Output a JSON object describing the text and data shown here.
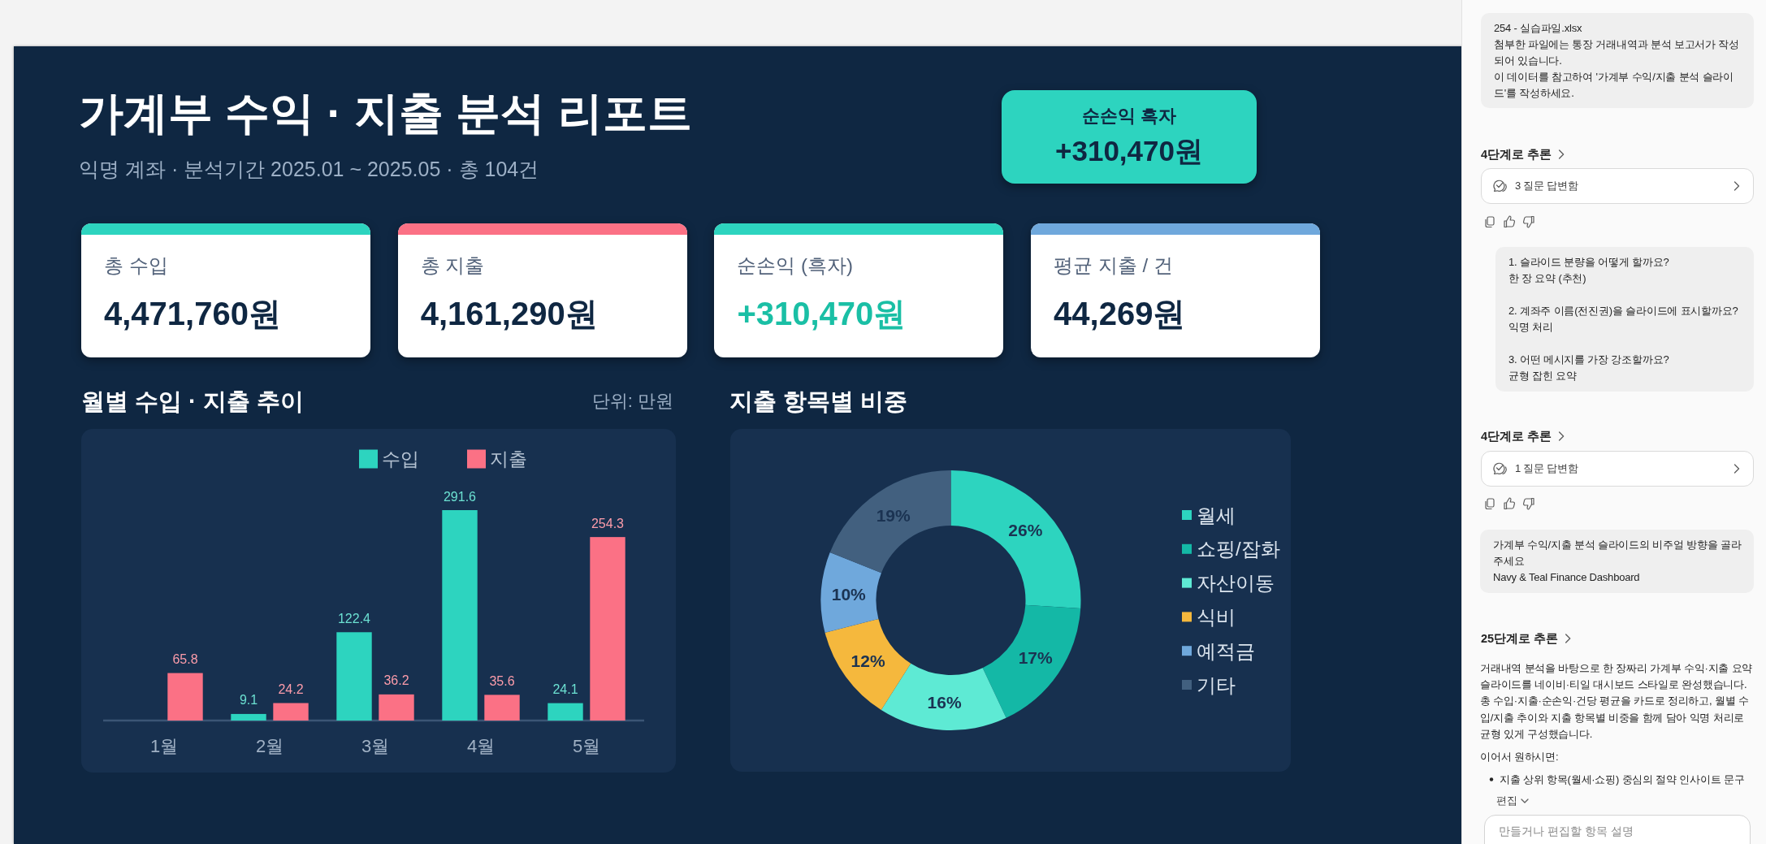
{
  "chart_data": [
    {
      "type": "other",
      "title": "가계부 수익 · 지출 분석 리포트",
      "subtitle": "익명 계좌 · 분석기간 2025.01 ~ 2025.05 · 총 104건",
      "annotations": [
        "순손익 흑자",
        "+310,470원",
        "총 수입",
        "4,471,760원",
        "총 지출",
        "4,161,290원",
        "순손익 (흑자)",
        "+310,470원",
        "평균 지출 / 건",
        "44,269원"
      ]
    },
    {
      "type": "bar",
      "title": "월별 수입 · 지출 추이",
      "annotations": [
        "단위: 만원"
      ],
      "categories": [
        "1월",
        "2월",
        "3월",
        "4월",
        "5월"
      ],
      "series": [
        {
          "name": "수입",
          "color": "#2dd4bf",
          "values": [
            null,
            9.1,
            122.4,
            291.6,
            24.1
          ]
        },
        {
          "name": "지출",
          "color": "#fb7185",
          "values": [
            65.8,
            24.2,
            36.2,
            35.6,
            254.3
          ]
        }
      ],
      "data_labels": true,
      "legend": "top"
    },
    {
      "type": "donut",
      "title": "지출 항목별 비중",
      "categories": [
        "월세",
        "쇼핑/잡화",
        "자산이동",
        "식비",
        "예적금",
        "기타"
      ],
      "values": [
        26,
        17,
        16,
        12,
        10,
        19
      ],
      "colors": [
        "#2dd4bf",
        "#14b8a6",
        "#5eead4",
        "#f5b83d",
        "#6fa8dc",
        "#42607f"
      ],
      "value_labels": [
        "26%",
        "17%",
        "16%",
        "12%",
        "10%",
        "19%"
      ],
      "legend": "right"
    },
    {
      "type": "other",
      "annotations": [
        "254 - 실습파일.xlsx",
        "첨부한 파일에는 통장 거래내역과 분석 보고서가 작성되어 있습니다.",
        "이 데이터를 참고하여 '가계부 수익/지출 분석 슬라이드'를 작성하세요.",
        "4단계로 추론",
        "3 질문 답변함",
        "1. 슬라이드 분량을 어떻게 할까요?",
        "한 장 요약 (추천)",
        "2. 계좌주 이름(전진권)을 슬라이드에 표시할까요?",
        "익명 처리",
        "3. 어떤 메시지를 가장 강조할까요?",
        "균형 잡힌 요약",
        "4단계로 추론",
        "1 질문 답변함",
        "가계부 수익/지출 분석 슬라이드의 비주얼 방향을 골라주세요",
        "Navy & Teal Finance Dashboard",
        "25단계로 추론",
        "거래내역 분석을 바탕으로 한 장짜리 가계부 수익·지출 요약 슬라이드를 네이비·티일 대시보드 스타일로 완성했습니다. 총 수입·지출·순손익·건당 평균을 카드로 정리하고, 월별 수입/지출 추이와 지출 항목별 비중을 함께 담아 익명 처리로 균형 있게 구성했습니다.",
        "이어서 원하시면:",
        "지출 상위 항목(월세·쇼핑) 중심의 절약 인사이트 문구",
        "편집",
        "만들거나 편집할 항목 설명"
      ]
    }
  ]
}
